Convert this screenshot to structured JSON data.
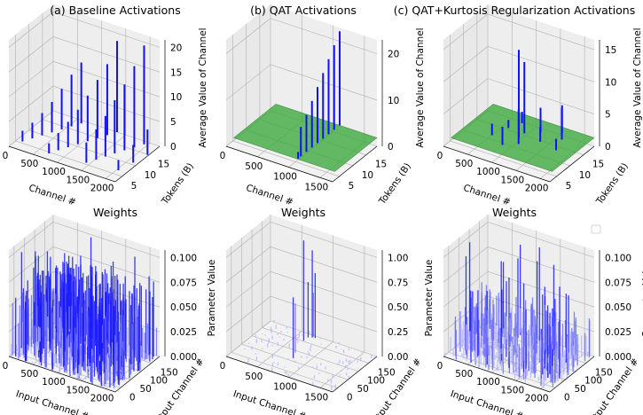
{
  "chart_data": [
    {
      "type": "3d-bar",
      "title": "(a) Baseline Activations",
      "xlabel": "Channel #",
      "ylabel": "Tokens (B)",
      "zlabel": "Average Value of Channel",
      "xticks": [
        "0",
        "500",
        "1000",
        "1500",
        "2000"
      ],
      "yticks": [
        "5",
        "10",
        "15"
      ],
      "zticks": [
        "0",
        "5",
        "10",
        "15",
        "20"
      ],
      "xlim": [
        0,
        2000
      ],
      "ylim": [
        0,
        16
      ],
      "zlim": [
        0,
        21
      ],
      "series": [
        {
          "values": [
            [
              100,
              3,
              2.1
            ],
            [
              180,
              5,
              3.1
            ],
            [
              260,
              7,
              4.4
            ],
            [
              340,
              9,
              6.0
            ],
            [
              420,
              11,
              8.0
            ],
            [
              500,
              13,
              10.2
            ],
            [
              580,
              15,
              12.0
            ],
            [
              650,
              2,
              2.0
            ],
            [
              720,
              4,
              3.4
            ],
            [
              800,
              6,
              5.0
            ],
            [
              880,
              8,
              6.8
            ],
            [
              960,
              10,
              9.0
            ],
            [
              1040,
              12,
              11.5
            ],
            [
              1120,
              14,
              14.0
            ],
            [
              1200,
              16,
              18.0
            ],
            [
              1300,
              3,
              4.0
            ],
            [
              1380,
              5,
              6.0
            ],
            [
              1450,
              7,
              8.0
            ],
            [
              1520,
              9,
              10.5
            ],
            [
              1600,
              11,
              13.0
            ],
            [
              1680,
              13,
              16.0
            ],
            [
              1760,
              15,
              19.5
            ],
            [
              1850,
              4,
              2.0
            ],
            [
              1920,
              8,
              3.5
            ],
            [
              1980,
              12,
              5.0
            ]
          ]
        }
      ],
      "colors": {
        "bar": "#1010ff"
      }
    },
    {
      "type": "3d-bar",
      "title": "(b) QAT Activations",
      "xlabel": "Channel #",
      "ylabel": "Tokens (B)",
      "zlabel": "Average Value of Channel",
      "xticks": [
        "0",
        "500",
        "1000",
        "1500"
      ],
      "yticks": [
        "5",
        "10",
        "15"
      ],
      "zticks": [
        "0",
        "10",
        "20"
      ],
      "xlim": [
        0,
        2000
      ],
      "ylim": [
        0,
        16
      ],
      "zlim": [
        0,
        28
      ],
      "series": [
        {
          "values": [
            [
              1300,
              2,
              10.0
            ],
            [
              1300,
              4,
              12.0
            ],
            [
              1300,
              6,
              14.5
            ],
            [
              1300,
              8,
              17.0
            ],
            [
              1300,
              10,
              19.5
            ],
            [
              1300,
              12,
              22.0
            ],
            [
              1300,
              14,
              24.5
            ],
            [
              1300,
              16,
              27.0
            ],
            [
              1300,
              1,
              4.0
            ]
          ]
        }
      ],
      "plane": {
        "color": "#3faa3f",
        "z": 0
      },
      "colors": {
        "bar": "#1010ff"
      }
    },
    {
      "type": "3d-bar",
      "title": "(c) QAT+Kurtosis Regularization Activations",
      "xlabel": "Channel #",
      "ylabel": "Tokens (B)",
      "zlabel": "Average Value of Channel",
      "xticks": [
        "0",
        "500",
        "1000",
        "1500",
        "2000"
      ],
      "yticks": [
        "5",
        "10",
        "15"
      ],
      "zticks": [
        "0",
        "5",
        "10",
        "15"
      ],
      "xlim": [
        0,
        2000
      ],
      "ylim": [
        0,
        16
      ],
      "zlim": [
        0,
        16
      ],
      "series": [
        {
          "values": [
            [
              1000,
              8,
              14.5
            ],
            [
              1000,
              10,
              12.0
            ],
            [
              1100,
              6,
              6.5
            ],
            [
              900,
              4,
              4.0
            ],
            [
              1200,
              12,
              5.0
            ],
            [
              1500,
              14,
              5.5
            ],
            [
              1600,
              12,
              6.0
            ],
            [
              600,
              6,
              3.0
            ],
            [
              700,
              10,
              2.5
            ],
            [
              1350,
              9,
              3.5
            ],
            [
              800,
              13,
              3.0
            ],
            [
              1700,
              8,
              3.0
            ]
          ]
        }
      ],
      "plane": {
        "color": "#3faa3f",
        "z": 0
      },
      "colors": {
        "bar": "#1010ff"
      }
    },
    {
      "type": "3d-bar",
      "title": "Weights",
      "xlabel": "Input Channel #",
      "ylabel": "Output Channel #",
      "zlabel": "Parameter Value",
      "xticks": [
        "0",
        "500",
        "1000",
        "1500",
        "2000"
      ],
      "yticks": [
        "0",
        "50",
        "100",
        "150"
      ],
      "zticks": [
        "0.000",
        "0.025",
        "0.050",
        "0.075",
        "0.100"
      ],
      "xlim": [
        0,
        2000
      ],
      "ylim": [
        0,
        180
      ],
      "zlim": [
        0,
        0.1
      ],
      "density": "dense",
      "colors": {
        "bar": "#6a6aff"
      }
    },
    {
      "type": "3d-bar",
      "title": "Weights",
      "xlabel": "Input Channel #",
      "ylabel": "Output Channel #",
      "zlabel": "Parameter Value",
      "xticks": [
        "0",
        "500",
        "1000",
        "1500"
      ],
      "yticks": [
        "0",
        "50",
        "100",
        "150"
      ],
      "zticks": [
        "0.00",
        "0.25",
        "0.50",
        "0.75",
        "1.00"
      ],
      "xlim": [
        0,
        2000
      ],
      "ylim": [
        0,
        180
      ],
      "zlim": [
        0,
        1.0
      ],
      "density": "sparse",
      "colors": {
        "bar": "#1010ff"
      }
    },
    {
      "type": "3d-bar",
      "title": "Weights",
      "xlabel": "Input Channel #",
      "ylabel": "Output Channel #",
      "zlabel": "Parameter Value",
      "xticks": [
        "0",
        "500",
        "1000",
        "1500",
        "2000"
      ],
      "yticks": [
        "0",
        "50",
        "100",
        "150"
      ],
      "zticks": [
        "0.000",
        "0.025",
        "0.050",
        "0.075",
        "0.100"
      ],
      "xlim": [
        0,
        2000
      ],
      "ylim": [
        0,
        180
      ],
      "zlim": [
        0,
        0.1
      ],
      "density": "medium",
      "colors": {
        "bar": "#4a4aff"
      }
    }
  ],
  "legend_box": {
    "visible": true,
    "location": "right"
  }
}
